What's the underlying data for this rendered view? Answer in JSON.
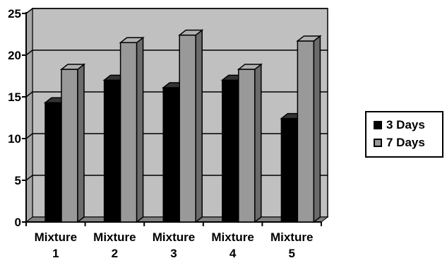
{
  "chart_data": {
    "type": "bar",
    "categories": [
      [
        "Mixture",
        "1"
      ],
      [
        "Mixture",
        "2"
      ],
      [
        "Mixture",
        "3"
      ],
      [
        "Mixture",
        "4"
      ],
      [
        "Mixture",
        "5"
      ]
    ],
    "series": [
      {
        "name": "3 Days",
        "values": [
          14.3,
          17.0,
          16.1,
          17.0,
          12.4
        ],
        "color": "#000000"
      },
      {
        "name": "7 Days",
        "values": [
          18.3,
          21.5,
          22.4,
          18.3,
          21.7
        ],
        "color": "#999999"
      }
    ],
    "title": "",
    "xlabel": "",
    "ylabel": "",
    "ylim": [
      0,
      25
    ],
    "yticks": [
      0,
      5,
      10,
      15,
      20,
      25
    ],
    "grid": true,
    "legend_position": "right",
    "style": "3d-bars",
    "plot_background": "#c0c0c0"
  }
}
